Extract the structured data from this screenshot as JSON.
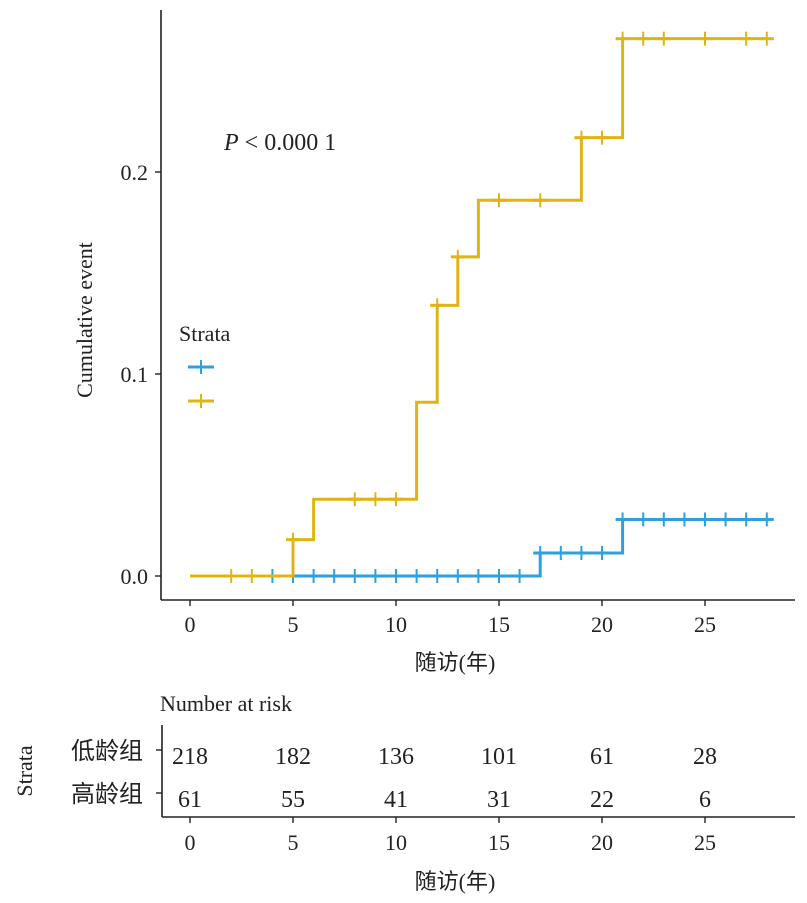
{
  "chart_data": [
    {
      "type": "line",
      "subtype": "step",
      "title": "",
      "xlabel": "随访(年)",
      "ylabel": "Cumulative event",
      "xlim": [
        -1.4,
        29.5
      ],
      "ylim": [
        -0.012,
        0.28
      ],
      "xticks": [
        0,
        5,
        10,
        15,
        20,
        25
      ],
      "yticks": [
        0.0,
        0.1,
        0.2
      ],
      "ytick_labels": [
        "0.0",
        "0.1",
        "0.2"
      ],
      "grid": false,
      "annotation": {
        "italic": "P",
        "text": " < 0.000 1"
      },
      "legend": {
        "title": "Strata",
        "placement": "left",
        "entries": [
          "",
          ""
        ]
      },
      "series": [
        {
          "color": "#2E9FDF",
          "steps": [
            [
              0,
              0
            ],
            [
              17,
              0.0114
            ],
            [
              21,
              0.028
            ],
            [
              28,
              0.028
            ]
          ],
          "censored": [
            4,
            5,
            6,
            7,
            8,
            9,
            10,
            11,
            12,
            13,
            14,
            15,
            16,
            17,
            18,
            19,
            20,
            21,
            22,
            23,
            24,
            25,
            26,
            27,
            28
          ]
        },
        {
          "color": "#E0B417",
          "steps": [
            [
              0,
              0
            ],
            [
              5,
              0.018
            ],
            [
              6,
              0.038
            ],
            [
              11,
              0.086
            ],
            [
              12,
              0.134
            ],
            [
              13,
              0.158
            ],
            [
              14,
              0.186
            ],
            [
              19,
              0.217
            ],
            [
              21,
              0.266
            ],
            [
              28,
              0.266
            ]
          ],
          "censored": [
            2,
            3,
            5,
            8,
            9,
            10,
            12,
            13,
            15,
            17,
            19,
            20,
            21,
            22,
            23,
            25,
            27,
            28
          ]
        }
      ]
    },
    {
      "type": "table",
      "title": "Number at risk",
      "ylabel": "Strata",
      "xlabel": "随访(年)",
      "xticks": [
        0,
        5,
        10,
        15,
        20,
        25
      ],
      "rows": [
        {
          "label": "低龄组",
          "values": [
            218,
            182,
            136,
            101,
            61,
            28
          ]
        },
        {
          "label": "高龄组",
          "values": [
            61,
            55,
            41,
            31,
            22,
            6
          ]
        }
      ]
    }
  ]
}
